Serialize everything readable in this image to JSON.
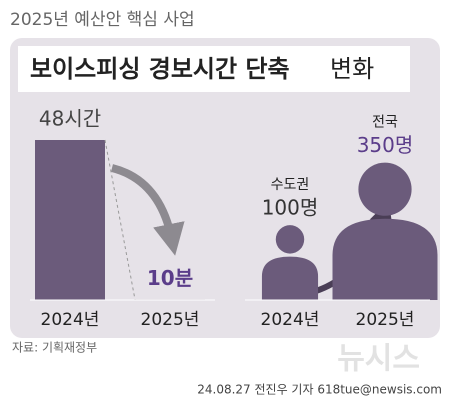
{
  "header": "2025년 예산안 핵심 사업",
  "title": {
    "bold": "보이스피싱 경보시간 단축",
    "normal": "변화"
  },
  "chart_data": [
    {
      "type": "bar",
      "categories": [
        "2024년",
        "2025년"
      ],
      "values": [
        2880,
        10
      ],
      "value_labels": [
        "48시간",
        "10분"
      ],
      "color": "#6b5b7b"
    },
    {
      "type": "pictogram",
      "categories": [
        "2024년",
        "2025년"
      ],
      "groups": [
        "수도권",
        "전국"
      ],
      "values": [
        100,
        350
      ],
      "value_labels": [
        "100명",
        "350명"
      ],
      "color": "#6b5b7b"
    }
  ],
  "source": "자료: 기획재정부",
  "watermark": "뉴시스",
  "credit": "24.08.27 전진우 기자 618tue@newsis.com"
}
